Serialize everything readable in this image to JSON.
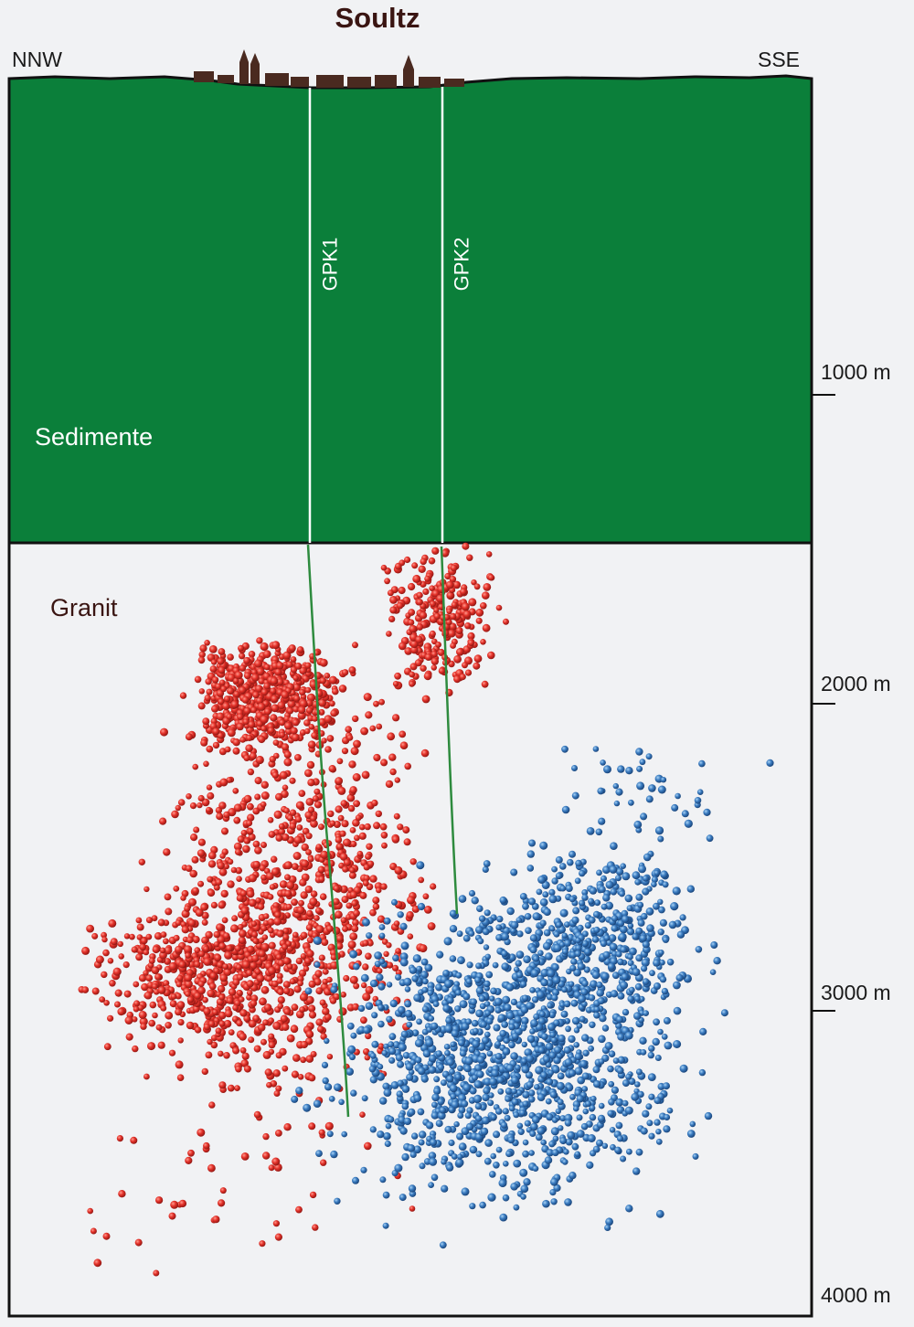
{
  "title": "Soultz",
  "directions": {
    "left": "NNW",
    "right": "SSE"
  },
  "layers": {
    "upper": {
      "label": "Sedimente",
      "color": "#0b7f3a"
    },
    "lower": {
      "label": "Granit",
      "color": "#f1f2f4"
    }
  },
  "wells": [
    {
      "label": "GPK1"
    },
    {
      "label": "GPK2"
    }
  ],
  "depth_axis": {
    "unit": "m",
    "ticks": [
      "1000 m",
      "2000 m",
      "3000 m",
      "4000 m"
    ]
  },
  "events": {
    "red_color": "#e4322a",
    "blue_color": "#3a7bc0"
  }
}
